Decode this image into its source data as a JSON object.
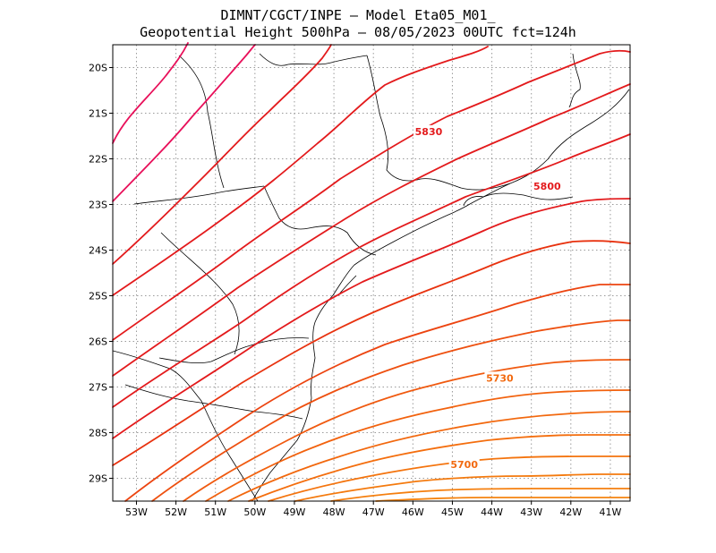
{
  "title": {
    "line1": "DIMNT/CGCT/INPE –  Model Eta05_M01_",
    "line2": "Geopotential Height 500hPa –  08/05/2023 00UTC fct=124h"
  },
  "chart_data": {
    "type": "contour-map",
    "variable": "Geopotential Height 500hPa",
    "units": "gpm",
    "lon_range": [
      -53.6,
      -40.5
    ],
    "lat_range": [
      -29.5,
      -19.5
    ],
    "lon_ticks": [
      "53W",
      "52W",
      "51W",
      "50W",
      "49W",
      "48W",
      "47W",
      "46W",
      "45W",
      "44W",
      "43W",
      "42W",
      "41W"
    ],
    "lat_ticks": [
      "20S",
      "21S",
      "22S",
      "23S",
      "24S",
      "25S",
      "26S",
      "27S",
      "28S",
      "29S"
    ],
    "grid": "dotted",
    "contour_interval": 10,
    "labeled_contours": [
      {
        "label": "5830",
        "lon": -45.6,
        "lat": -21.4
      },
      {
        "label": "5800",
        "lon": -42.6,
        "lat": -22.6
      },
      {
        "label": "5730",
        "lon": -43.8,
        "lat": -26.8
      },
      {
        "label": "5700",
        "lon": -44.7,
        "lat": -28.7
      }
    ],
    "colors": {
      "high": "#e0105a",
      "mid": "#e31a1c",
      "low": "#f26a10",
      "coast": "#000000",
      "grid": "#9a9a9a"
    }
  }
}
